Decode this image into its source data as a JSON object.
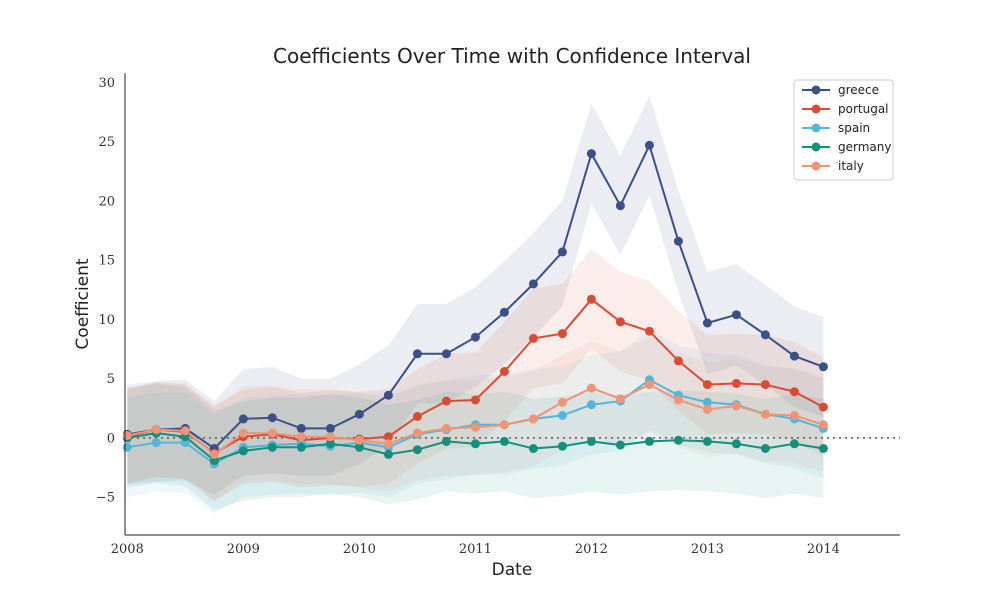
{
  "chart_data": {
    "type": "line",
    "title": "Coefficients Over Time with Confidence Interval",
    "xlabel": "Date",
    "ylabel": "Coefficient",
    "xlim": [
      2007.98,
      2014.66
    ],
    "ylim": [
      -8.2,
      30.8
    ],
    "x_ticks": [
      2008,
      2009,
      2010,
      2011,
      2012,
      2013,
      2014
    ],
    "x_tick_labels": [
      "2008",
      "2009",
      "2010",
      "2011",
      "2012",
      "2013",
      "2014"
    ],
    "y_ticks": [
      -5,
      0,
      5,
      10,
      15,
      20,
      25,
      30
    ],
    "y_tick_labels": [
      "−5",
      "0",
      "5",
      "10",
      "15",
      "20",
      "25",
      "30"
    ],
    "reference_line": 0,
    "legend_position": "top-right",
    "x": [
      2008.0,
      2008.25,
      2008.5,
      2008.75,
      2009.0,
      2009.25,
      2009.5,
      2009.75,
      2010.0,
      2010.25,
      2010.5,
      2010.75,
      2011.0,
      2011.25,
      2011.5,
      2011.75,
      2012.0,
      2012.25,
      2012.5,
      2012.75,
      2013.0,
      2013.25,
      2013.5,
      2013.75,
      2014.0
    ],
    "series": [
      {
        "name": "greece",
        "color": "#3a5087",
        "values": [
          0.3,
          0.7,
          0.8,
          -0.9,
          1.6,
          1.7,
          0.8,
          0.8,
          2.0,
          3.6,
          7.1,
          7.1,
          8.5,
          10.6,
          13.0,
          15.7,
          24.0,
          19.6,
          24.7,
          16.6,
          9.7,
          10.4,
          8.7,
          6.9,
          6.0
        ],
        "lower": [
          -3.9,
          -3.7,
          -3.6,
          -4.8,
          -3.2,
          -3.0,
          -3.2,
          -3.2,
          -2.2,
          -0.6,
          2.9,
          2.9,
          4.3,
          6.2,
          8.5,
          11.1,
          19.8,
          15.4,
          20.5,
          12.3,
          5.4,
          6.1,
          4.5,
          2.6,
          1.8
        ],
        "upper": [
          4.5,
          4.8,
          4.9,
          3.1,
          5.8,
          6.0,
          5.0,
          5.0,
          6.2,
          7.8,
          11.3,
          11.3,
          12.7,
          14.9,
          17.3,
          20.0,
          28.2,
          23.8,
          28.9,
          20.9,
          14.0,
          14.7,
          12.9,
          11.1,
          10.2
        ]
      },
      {
        "name": "portugal",
        "color": "#d94c33",
        "values": [
          0.1,
          0.7,
          0.5,
          -1.3,
          0.1,
          0.3,
          -0.2,
          0.0,
          -0.1,
          0.1,
          1.8,
          3.1,
          3.2,
          5.6,
          8.4,
          8.8,
          11.7,
          9.8,
          9.0,
          6.5,
          4.5,
          4.6,
          4.5,
          3.9,
          2.6
        ],
        "lower": [
          -3.9,
          -3.3,
          -3.5,
          -5.3,
          -3.9,
          -3.7,
          -4.2,
          -4.0,
          -4.1,
          -3.9,
          -2.2,
          -0.9,
          -0.8,
          1.4,
          4.2,
          4.6,
          7.5,
          5.6,
          4.8,
          2.3,
          0.3,
          0.4,
          0.3,
          -0.3,
          -1.6
        ],
        "upper": [
          4.1,
          4.7,
          4.5,
          2.7,
          4.1,
          4.3,
          3.8,
          4.0,
          3.9,
          4.1,
          5.8,
          7.1,
          7.2,
          9.8,
          12.6,
          13.0,
          15.9,
          14.0,
          13.2,
          10.7,
          8.7,
          8.8,
          8.7,
          8.1,
          6.8
        ]
      },
      {
        "name": "spain",
        "color": "#54b6d6",
        "values": [
          -0.8,
          -0.4,
          -0.4,
          -2.2,
          -0.8,
          -0.6,
          -0.5,
          -0.7,
          -0.4,
          -0.8,
          0.3,
          0.7,
          1.1,
          1.1,
          1.6,
          1.9,
          2.8,
          3.1,
          4.9,
          3.6,
          3.0,
          2.8,
          2.0,
          1.6,
          0.8
        ],
        "lower": [
          -5.0,
          -4.6,
          -4.6,
          -6.4,
          -5.0,
          -4.8,
          -4.7,
          -4.9,
          -4.6,
          -5.0,
          -3.9,
          -3.5,
          -3.1,
          -3.1,
          -2.6,
          -2.3,
          -1.4,
          -1.1,
          0.7,
          -0.6,
          -1.2,
          -1.4,
          -2.2,
          -2.6,
          -3.4
        ],
        "upper": [
          3.4,
          3.8,
          3.8,
          2.0,
          3.4,
          3.6,
          3.7,
          3.5,
          3.8,
          3.4,
          4.5,
          4.9,
          5.3,
          5.3,
          5.8,
          6.1,
          7.0,
          7.3,
          9.1,
          7.8,
          7.2,
          7.0,
          6.2,
          5.8,
          5.0
        ]
      },
      {
        "name": "germany",
        "color": "#138f7c",
        "values": [
          0.0,
          0.4,
          0.1,
          -1.9,
          -1.1,
          -0.8,
          -0.8,
          -0.5,
          -0.8,
          -1.4,
          -1.0,
          -0.3,
          -0.5,
          -0.3,
          -0.9,
          -0.7,
          -0.3,
          -0.6,
          -0.3,
          -0.2,
          -0.3,
          -0.5,
          -0.9,
          -0.5,
          -0.9
        ],
        "lower": [
          -4.2,
          -3.8,
          -4.1,
          -6.1,
          -5.3,
          -5.0,
          -5.0,
          -4.7,
          -5.0,
          -5.6,
          -5.2,
          -4.5,
          -4.7,
          -4.5,
          -5.1,
          -4.9,
          -4.5,
          -4.8,
          -4.5,
          -4.4,
          -4.5,
          -4.7,
          -5.1,
          -4.7,
          -5.1
        ],
        "upper": [
          4.2,
          4.6,
          4.3,
          2.3,
          3.1,
          3.4,
          3.4,
          3.7,
          3.4,
          2.8,
          3.2,
          3.9,
          3.7,
          3.9,
          3.3,
          3.5,
          3.9,
          3.6,
          3.9,
          4.0,
          3.9,
          3.7,
          3.3,
          3.7,
          3.3
        ]
      },
      {
        "name": "italy",
        "color": "#ee9477",
        "values": [
          0.2,
          0.7,
          0.6,
          -1.4,
          0.4,
          0.4,
          0.1,
          0.1,
          -0.2,
          -0.5,
          0.4,
          0.8,
          0.9,
          1.1,
          1.6,
          3.0,
          4.2,
          3.3,
          4.5,
          3.2,
          2.4,
          2.7,
          2.0,
          1.9,
          1.1
        ],
        "lower": [
          -3.8,
          -3.3,
          -3.4,
          -5.4,
          -3.6,
          -3.6,
          -3.9,
          -3.9,
          -4.2,
          -4.5,
          -3.6,
          -3.2,
          -3.1,
          -2.9,
          -2.4,
          -1.0,
          0.2,
          -0.7,
          0.5,
          -0.8,
          -1.6,
          -1.3,
          -2.0,
          -2.1,
          -2.9
        ],
        "upper": [
          4.2,
          4.7,
          4.6,
          2.6,
          4.4,
          4.4,
          4.1,
          4.1,
          3.8,
          3.5,
          4.4,
          4.8,
          4.9,
          5.1,
          5.6,
          7.0,
          8.2,
          7.3,
          8.5,
          7.2,
          6.4,
          6.7,
          6.0,
          5.9,
          5.1
        ]
      }
    ]
  }
}
